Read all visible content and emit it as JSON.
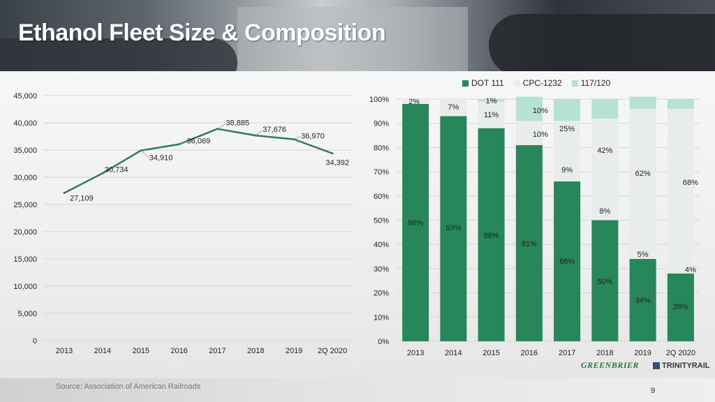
{
  "page": {
    "title": "Ethanol Fleet Size & Composition",
    "source": "Source: Association of American Railroads",
    "page_number": "9",
    "logos": [
      "GREENBRIER",
      "TRINITYRAIL"
    ]
  },
  "colors": {
    "dot111": "#27875a",
    "cpc1232": "#e8ecea",
    "r117": "#b7e1d5",
    "line": "#2e7d4f"
  },
  "chart_data": [
    {
      "type": "line",
      "title": "",
      "x": [
        "2013",
        "2014",
        "2015",
        "2016",
        "2017",
        "2018",
        "2019",
        "2Q 2020"
      ],
      "series": [
        {
          "values": [
            27109,
            30734,
            34910,
            36069,
            38885,
            37676,
            36970,
            34392
          ]
        }
      ],
      "data_labels": [
        "27,109",
        "30,734",
        "34,910",
        "36,069",
        "38,885",
        "37,676",
        "36,970",
        "34,392"
      ],
      "ylim": [
        0,
        45000
      ],
      "yticks": [
        "0",
        "5,000",
        "10,000",
        "15,000",
        "20,000",
        "25,000",
        "30,000",
        "35,000",
        "40,000",
        "45,000"
      ],
      "grid": true
    },
    {
      "type": "bar",
      "stacked": true,
      "categories": [
        "2013",
        "2014",
        "2015",
        "2016",
        "2017",
        "2018",
        "2019",
        "2Q 2020"
      ],
      "series": [
        {
          "name": "DOT 111",
          "values": [
            98,
            93,
            88,
            81,
            66,
            50,
            34,
            28
          ]
        },
        {
          "name": "CPC-1232",
          "values": [
            2,
            7,
            11,
            10,
            25,
            42,
            62,
            68
          ]
        },
        {
          "name": "117/120",
          "values": [
            0,
            0,
            1,
            10,
            9,
            8,
            5,
            4
          ]
        }
      ],
      "labels": {
        "DOT 111": [
          "98%",
          "93%",
          "88%",
          "81%",
          "66%",
          "50%",
          "34%",
          "28%"
        ],
        "CPC-1232": [
          "2%",
          "7%",
          "11%",
          "10%",
          "25%",
          "42%",
          "62%",
          "68%"
        ],
        "117/120": [
          "",
          "",
          "1%",
          "10%",
          "9%",
          "8%",
          "5%",
          "4%"
        ]
      },
      "ylim": [
        0,
        100
      ],
      "yticks": [
        "0%",
        "10%",
        "20%",
        "30%",
        "40%",
        "50%",
        "60%",
        "70%",
        "80%",
        "90%",
        "100%"
      ],
      "legend": {
        "position": "top-right",
        "entries": [
          "DOT 111",
          "CPC-1232",
          "117/120"
        ]
      }
    }
  ]
}
